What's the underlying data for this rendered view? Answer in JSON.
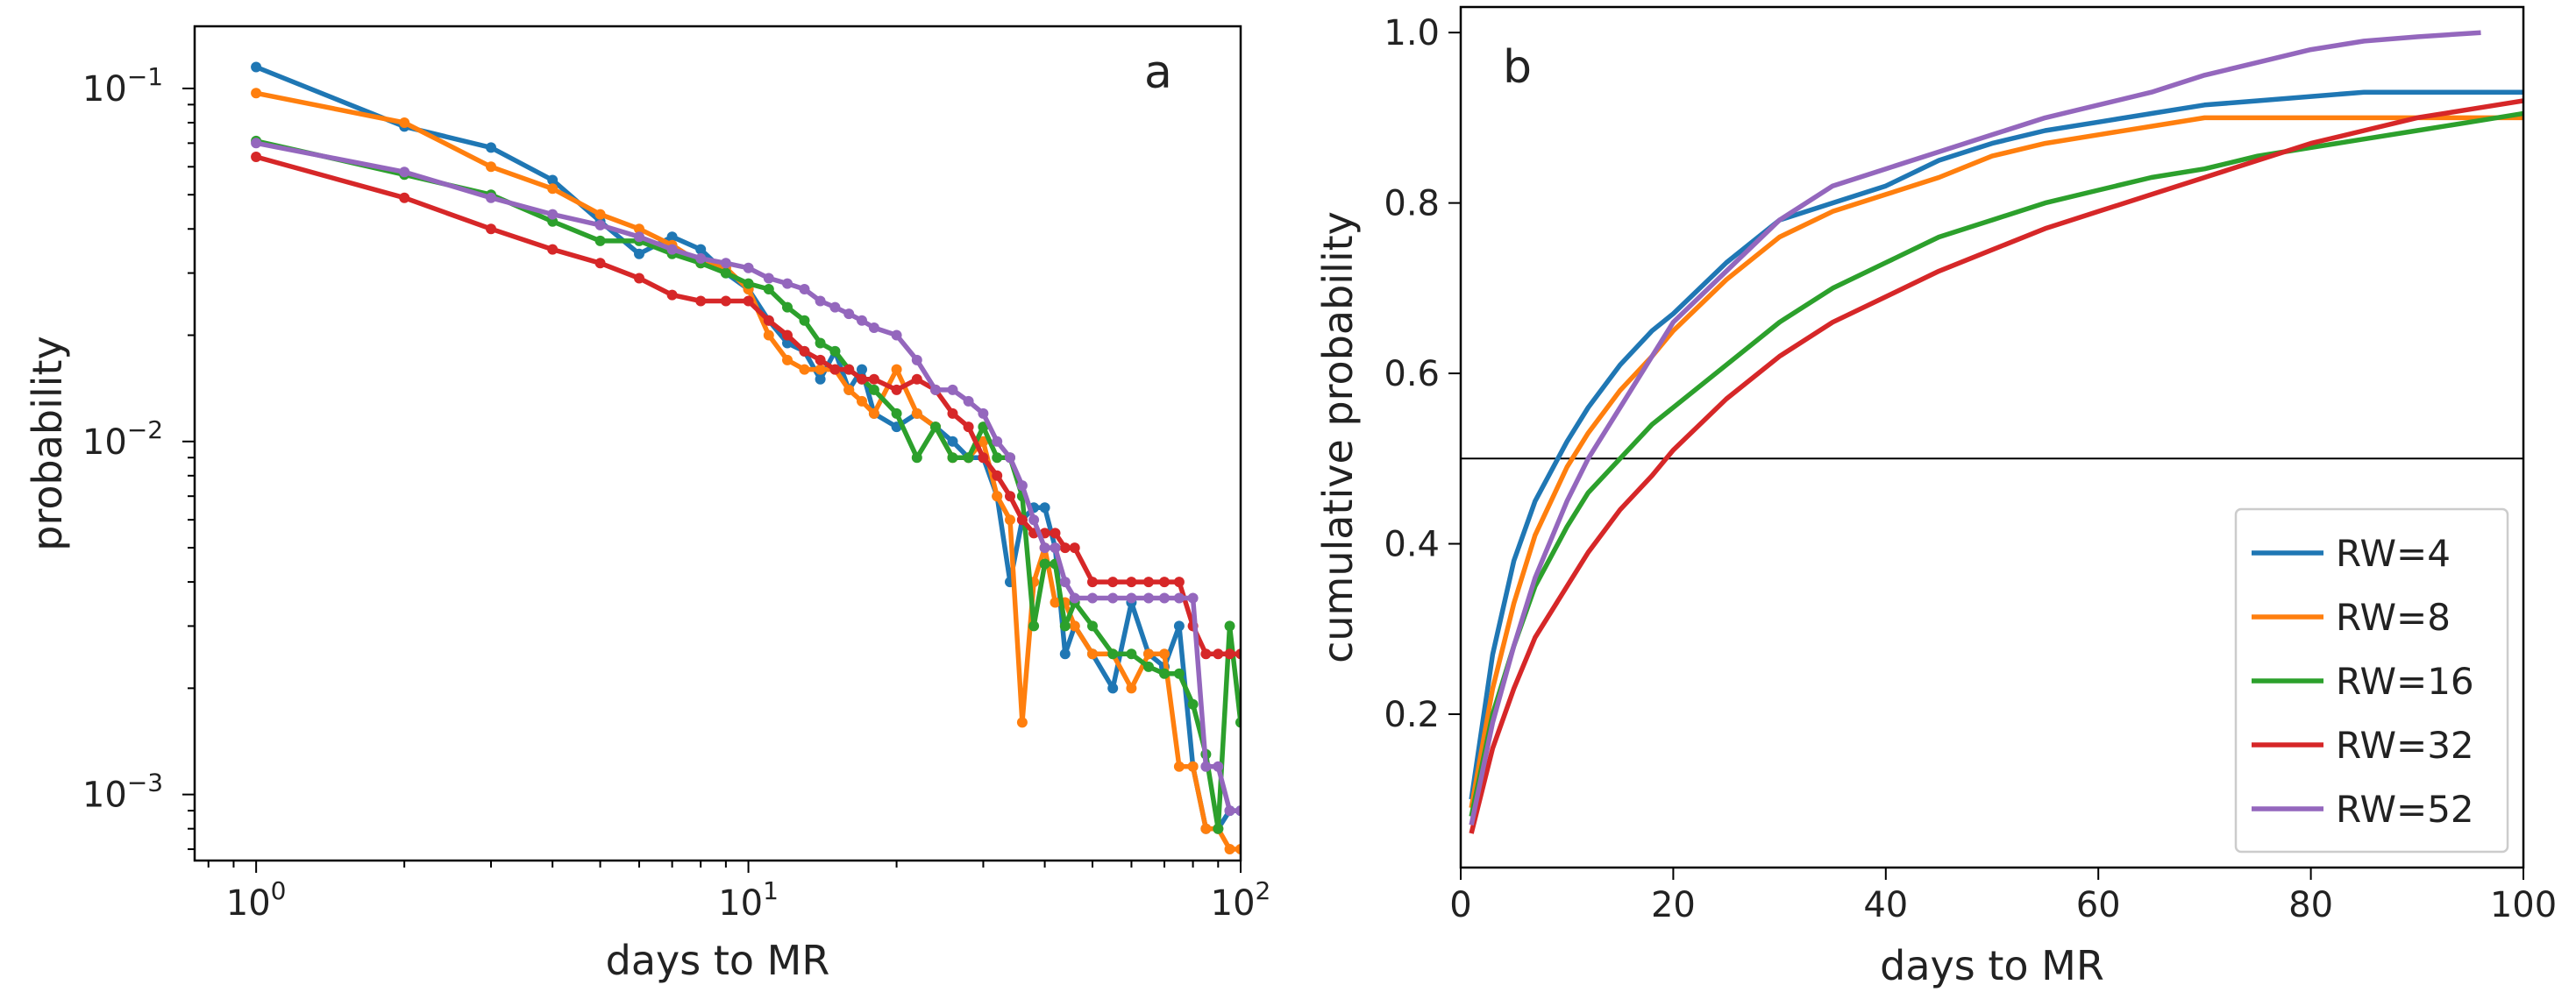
{
  "colors": {
    "RW=4": "#1f77b4",
    "RW=8": "#ff7f0e",
    "RW=16": "#2ca02c",
    "RW=32": "#d62728",
    "RW=52": "#9467bd",
    "axis": "#000000",
    "text": "#222222"
  },
  "chart_data": [
    {
      "type": "line",
      "panel_label": "a",
      "xlabel": "days to MR",
      "ylabel": "probability",
      "xscale": "log",
      "yscale": "log",
      "xlim": [
        0.75,
        100
      ],
      "ylim": [
        0.00065,
        0.15
      ],
      "grid": false,
      "markers": true,
      "x_ticks": [
        {
          "value": 1,
          "base": "10",
          "exp": "0"
        },
        {
          "value": 10,
          "base": "10",
          "exp": "1"
        },
        {
          "value": 100,
          "base": "10",
          "exp": "2"
        }
      ],
      "y_ticks": [
        {
          "value": 0.001,
          "base": "10",
          "exp": "−3"
        },
        {
          "value": 0.01,
          "base": "10",
          "exp": "−2"
        },
        {
          "value": 0.1,
          "base": "10",
          "exp": "−1"
        }
      ],
      "series": [
        {
          "name": "RW=4",
          "x": [
            1,
            2,
            3,
            4,
            5,
            6,
            7,
            8,
            9,
            10,
            11,
            12,
            13,
            14,
            15,
            16,
            17,
            18,
            20,
            22,
            24,
            26,
            28,
            30,
            32,
            34,
            36,
            38,
            40,
            42,
            44,
            46,
            50,
            55,
            60,
            65,
            70,
            75,
            80,
            85,
            90,
            95,
            100
          ],
          "y": [
            0.115,
            0.078,
            0.068,
            0.055,
            0.042,
            0.034,
            0.038,
            0.035,
            0.03,
            0.027,
            0.022,
            0.019,
            0.018,
            0.015,
            0.018,
            0.014,
            0.016,
            0.012,
            0.011,
            0.012,
            0.011,
            0.01,
            0.009,
            0.009,
            0.007,
            0.004,
            0.006,
            0.0065,
            0.0065,
            0.005,
            0.0025,
            0.003,
            0.0025,
            0.002,
            0.0035,
            0.0025,
            0.0023,
            0.003,
            0.0012,
            0.0008,
            0.0008,
            0.0009,
            0.0009
          ]
        },
        {
          "name": "RW=8",
          "x": [
            1,
            2,
            3,
            4,
            5,
            6,
            7,
            8,
            9,
            10,
            11,
            12,
            13,
            14,
            15,
            16,
            17,
            18,
            20,
            22,
            24,
            26,
            28,
            30,
            32,
            34,
            36,
            38,
            40,
            42,
            44,
            46,
            50,
            55,
            60,
            65,
            70,
            75,
            80,
            85,
            90,
            95,
            100
          ],
          "y": [
            0.097,
            0.08,
            0.06,
            0.052,
            0.044,
            0.04,
            0.036,
            0.032,
            0.031,
            0.027,
            0.02,
            0.017,
            0.016,
            0.016,
            0.016,
            0.014,
            0.013,
            0.012,
            0.016,
            0.012,
            0.011,
            0.009,
            0.009,
            0.01,
            0.007,
            0.006,
            0.0016,
            0.004,
            0.005,
            0.0035,
            0.0035,
            0.003,
            0.0025,
            0.0025,
            0.002,
            0.0025,
            0.0025,
            0.0012,
            0.0012,
            0.0008,
            0.0008,
            0.0007,
            0.0007
          ]
        },
        {
          "name": "RW=16",
          "x": [
            1,
            2,
            3,
            4,
            5,
            6,
            7,
            8,
            9,
            10,
            11,
            12,
            13,
            14,
            15,
            16,
            17,
            18,
            20,
            22,
            24,
            26,
            28,
            30,
            32,
            34,
            36,
            38,
            40,
            42,
            44,
            46,
            50,
            55,
            60,
            65,
            70,
            75,
            80,
            85,
            90,
            95,
            100
          ],
          "y": [
            0.071,
            0.057,
            0.05,
            0.042,
            0.037,
            0.037,
            0.034,
            0.032,
            0.03,
            0.028,
            0.027,
            0.024,
            0.022,
            0.019,
            0.018,
            0.016,
            0.015,
            0.014,
            0.012,
            0.009,
            0.011,
            0.009,
            0.009,
            0.011,
            0.009,
            0.009,
            0.007,
            0.003,
            0.0045,
            0.0045,
            0.003,
            0.0035,
            0.003,
            0.0025,
            0.0025,
            0.0023,
            0.0022,
            0.0022,
            0.0018,
            0.0013,
            0.0008,
            0.003,
            0.0016
          ]
        },
        {
          "name": "RW=32",
          "x": [
            1,
            2,
            3,
            4,
            5,
            6,
            7,
            8,
            9,
            10,
            11,
            12,
            13,
            14,
            15,
            16,
            17,
            18,
            20,
            22,
            24,
            26,
            28,
            30,
            32,
            34,
            36,
            38,
            40,
            42,
            44,
            46,
            50,
            55,
            60,
            65,
            70,
            75,
            80,
            85,
            90,
            95,
            100
          ],
          "y": [
            0.064,
            0.049,
            0.04,
            0.035,
            0.032,
            0.029,
            0.026,
            0.025,
            0.025,
            0.025,
            0.022,
            0.02,
            0.018,
            0.017,
            0.016,
            0.016,
            0.015,
            0.015,
            0.014,
            0.015,
            0.014,
            0.012,
            0.011,
            0.009,
            0.008,
            0.007,
            0.006,
            0.0055,
            0.0055,
            0.0055,
            0.005,
            0.005,
            0.004,
            0.004,
            0.004,
            0.004,
            0.004,
            0.004,
            0.003,
            0.0025,
            0.0025,
            0.0025,
            0.0025
          ]
        },
        {
          "name": "RW=52",
          "x": [
            1,
            2,
            3,
            4,
            5,
            6,
            7,
            8,
            9,
            10,
            11,
            12,
            13,
            14,
            15,
            16,
            17,
            18,
            20,
            22,
            24,
            26,
            28,
            30,
            32,
            34,
            36,
            38,
            40,
            42,
            44,
            46,
            50,
            55,
            60,
            65,
            70,
            75,
            80,
            85,
            90,
            95,
            100
          ],
          "y": [
            0.07,
            0.058,
            0.049,
            0.044,
            0.041,
            0.038,
            0.035,
            0.033,
            0.032,
            0.031,
            0.029,
            0.028,
            0.027,
            0.025,
            0.024,
            0.023,
            0.022,
            0.021,
            0.02,
            0.017,
            0.014,
            0.014,
            0.013,
            0.012,
            0.01,
            0.009,
            0.0075,
            0.006,
            0.005,
            0.005,
            0.004,
            0.0036,
            0.0036,
            0.0036,
            0.0036,
            0.0036,
            0.0036,
            0.0036,
            0.0036,
            0.0012,
            0.0012,
            0.0009,
            0.0009
          ]
        }
      ]
    },
    {
      "type": "line",
      "panel_label": "b",
      "xlabel": "days to MR",
      "ylabel": "cumulative probability",
      "xlim": [
        0,
        100
      ],
      "ylim": [
        0.02,
        1.03
      ],
      "grid": false,
      "markers": false,
      "x_ticks": [
        0,
        20,
        40,
        60,
        80,
        100
      ],
      "y_ticks": [
        "0.2",
        "0.4",
        "0.6",
        "0.8",
        "1.0"
      ],
      "reference_line_y": 0.5,
      "legend": {
        "placement": "lower right"
      },
      "series": [
        {
          "name": "RW=4",
          "x": [
            1,
            3,
            5,
            7,
            10,
            12,
            15,
            18,
            20,
            25,
            30,
            35,
            40,
            45,
            50,
            55,
            60,
            65,
            70,
            75,
            80,
            85,
            90,
            95,
            100
          ],
          "y": [
            0.1,
            0.27,
            0.38,
            0.45,
            0.52,
            0.56,
            0.61,
            0.65,
            0.67,
            0.73,
            0.78,
            0.8,
            0.82,
            0.85,
            0.87,
            0.885,
            0.895,
            0.905,
            0.915,
            0.92,
            0.925,
            0.93,
            0.93,
            0.93,
            0.93
          ]
        },
        {
          "name": "RW=8",
          "x": [
            1,
            3,
            5,
            7,
            10,
            12,
            15,
            18,
            20,
            25,
            30,
            35,
            40,
            45,
            50,
            55,
            60,
            65,
            70,
            75,
            80,
            85,
            90,
            95,
            100
          ],
          "y": [
            0.09,
            0.23,
            0.33,
            0.41,
            0.49,
            0.53,
            0.58,
            0.62,
            0.65,
            0.71,
            0.76,
            0.79,
            0.81,
            0.83,
            0.855,
            0.87,
            0.88,
            0.89,
            0.9,
            0.9,
            0.9,
            0.9,
            0.9,
            0.9,
            0.9
          ]
        },
        {
          "name": "RW=16",
          "x": [
            1,
            3,
            5,
            7,
            10,
            12,
            15,
            18,
            20,
            25,
            30,
            35,
            40,
            45,
            50,
            55,
            60,
            65,
            70,
            75,
            80,
            85,
            90,
            95,
            100
          ],
          "y": [
            0.08,
            0.2,
            0.28,
            0.35,
            0.42,
            0.46,
            0.5,
            0.54,
            0.56,
            0.61,
            0.66,
            0.7,
            0.73,
            0.76,
            0.78,
            0.8,
            0.815,
            0.83,
            0.84,
            0.855,
            0.865,
            0.875,
            0.885,
            0.895,
            0.905
          ]
        },
        {
          "name": "RW=32",
          "x": [
            1,
            3,
            5,
            7,
            10,
            12,
            15,
            18,
            20,
            25,
            30,
            35,
            40,
            45,
            50,
            55,
            60,
            65,
            70,
            75,
            80,
            85,
            90,
            95,
            100
          ],
          "y": [
            0.06,
            0.16,
            0.23,
            0.29,
            0.35,
            0.39,
            0.44,
            0.48,
            0.51,
            0.57,
            0.62,
            0.66,
            0.69,
            0.72,
            0.745,
            0.77,
            0.79,
            0.81,
            0.83,
            0.85,
            0.87,
            0.885,
            0.9,
            0.91,
            0.92
          ]
        },
        {
          "name": "RW=52",
          "x": [
            1,
            3,
            5,
            7,
            10,
            12,
            15,
            18,
            20,
            25,
            30,
            35,
            40,
            45,
            50,
            55,
            60,
            65,
            70,
            75,
            80,
            85,
            90,
            96
          ],
          "y": [
            0.07,
            0.19,
            0.28,
            0.36,
            0.45,
            0.5,
            0.56,
            0.62,
            0.66,
            0.72,
            0.78,
            0.82,
            0.84,
            0.86,
            0.88,
            0.9,
            0.915,
            0.93,
            0.95,
            0.965,
            0.98,
            0.99,
            0.995,
            1.0
          ]
        }
      ]
    }
  ]
}
